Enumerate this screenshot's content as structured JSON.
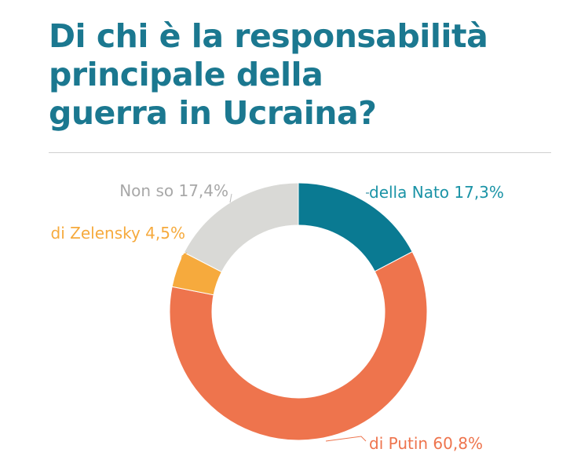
{
  "chart_data": {
    "type": "pie",
    "donut": true,
    "title": "Di chi è la responsabilità principale della guerra in Ucraina?",
    "title_lines": [
      "Di chi è la responsabilità",
      "principale della",
      "guerra in Ucraina?"
    ],
    "slices": [
      {
        "name": "della Nato",
        "value": 17.3,
        "label": "della Nato 17,3%",
        "color": "#0a7a92",
        "label_color": "#1a93a6"
      },
      {
        "name": "di Putin",
        "value": 60.8,
        "label": "di Putin 60,8%",
        "color": "#ee744d",
        "label_color": "#ee744d"
      },
      {
        "name": "di Zelensky",
        "value": 4.5,
        "label": "di Zelensky 4,5%",
        "color": "#f6aa3d",
        "label_color": "#f6aa3d"
      },
      {
        "name": "Non so",
        "value": 17.4,
        "label": "Non so 17,4%",
        "color": "#d9d9d6",
        "label_color": "#a8a8a8"
      }
    ]
  }
}
